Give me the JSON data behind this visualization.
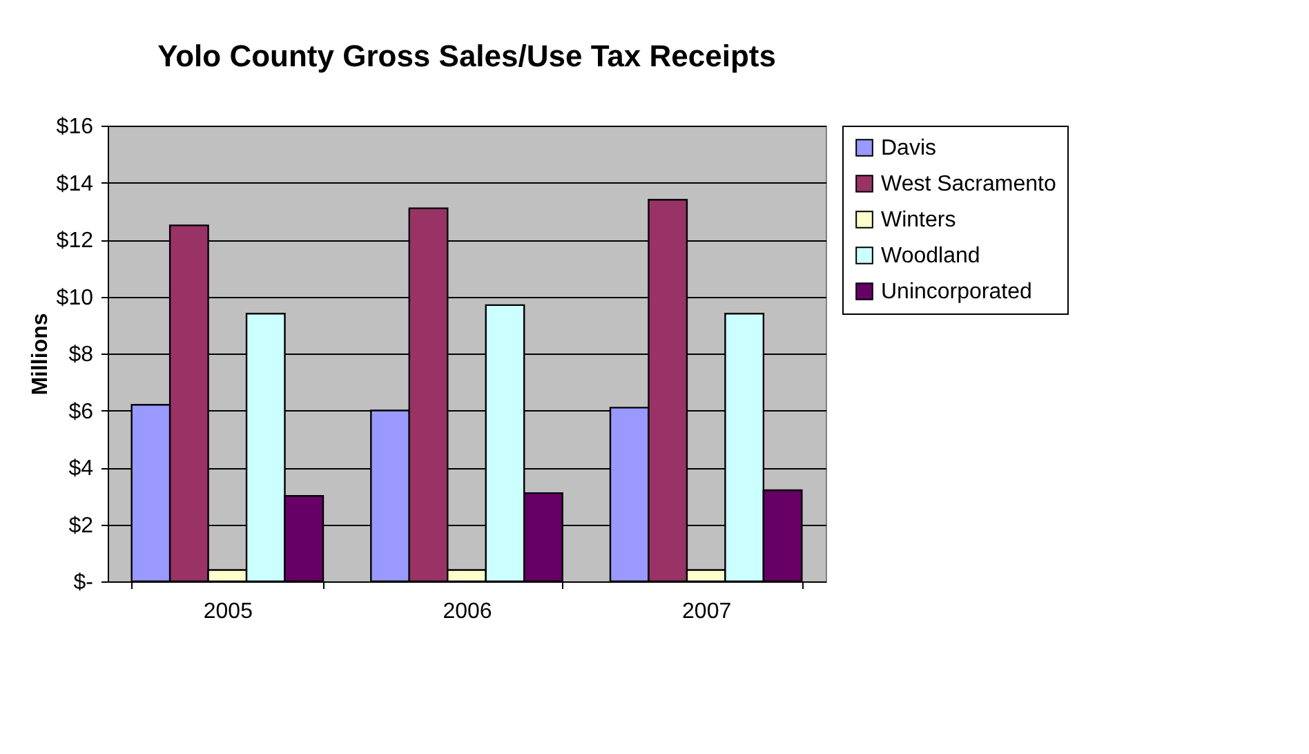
{
  "chart_data": {
    "type": "bar",
    "title": "Yolo County Gross Sales/Use Tax Receipts",
    "ylabel": "Millions",
    "categories": [
      "2005",
      "2006",
      "2007"
    ],
    "series": [
      {
        "name": "Davis",
        "color": "#9999ff",
        "values": [
          6.2,
          6.0,
          6.1
        ]
      },
      {
        "name": "West Sacramento",
        "color": "#993366",
        "values": [
          12.5,
          13.1,
          13.4
        ]
      },
      {
        "name": "Winters",
        "color": "#ffffcc",
        "values": [
          0.4,
          0.4,
          0.4
        ]
      },
      {
        "name": "Woodland",
        "color": "#ccffff",
        "values": [
          9.4,
          9.7,
          9.4
        ]
      },
      {
        "name": "Unincorporated",
        "color": "#660066",
        "values": [
          3.0,
          3.1,
          3.2
        ]
      }
    ],
    "ylim": [
      0,
      16
    ],
    "yticks": [
      {
        "value": 0,
        "label": "$-"
      },
      {
        "value": 2,
        "label": "$2"
      },
      {
        "value": 4,
        "label": "$4"
      },
      {
        "value": 6,
        "label": "$6"
      },
      {
        "value": 8,
        "label": "$8"
      },
      {
        "value": 10,
        "label": "$10"
      },
      {
        "value": 12,
        "label": "$12"
      },
      {
        "value": 14,
        "label": "$14"
      },
      {
        "value": 16,
        "label": "$16"
      }
    ],
    "grid": "y",
    "legend": "right"
  }
}
